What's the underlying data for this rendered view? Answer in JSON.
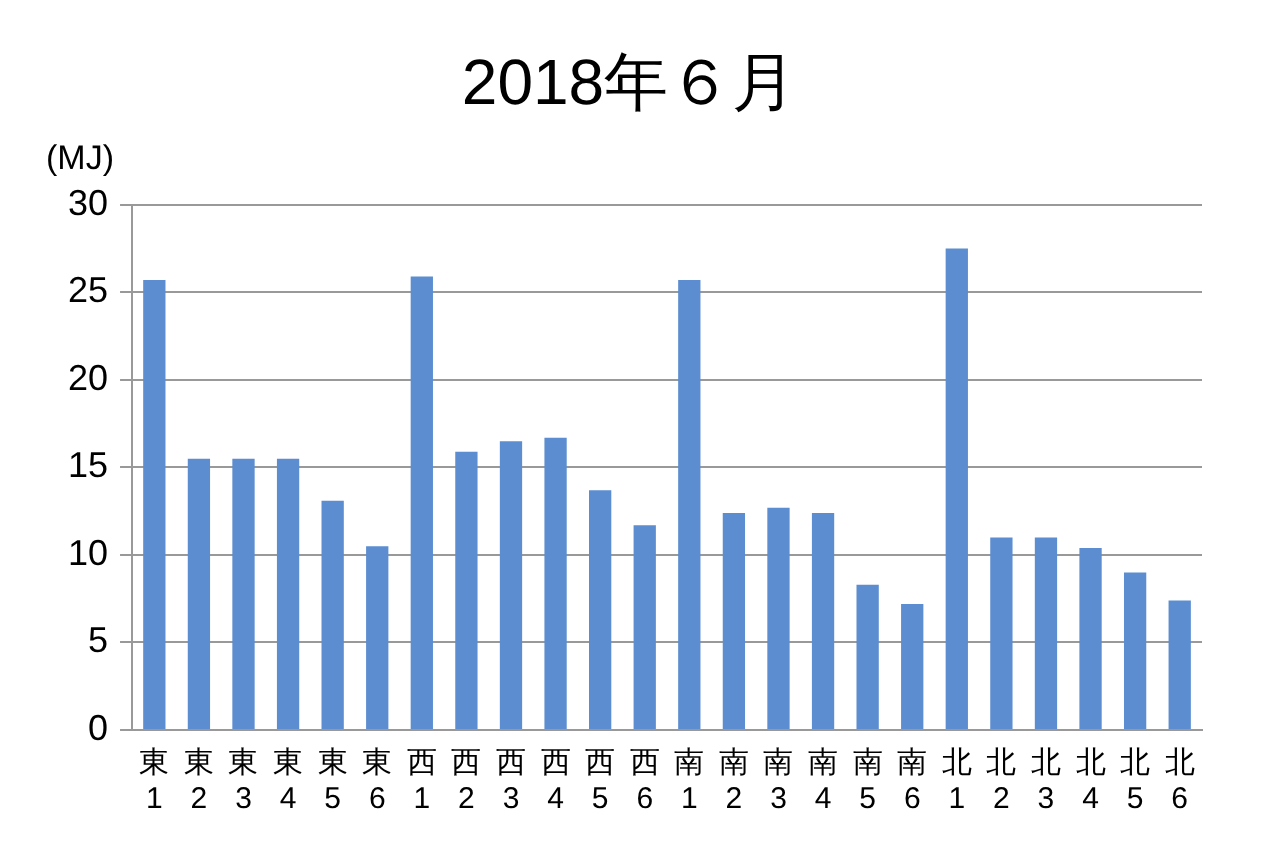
{
  "chart_data": {
    "type": "bar",
    "title": "2018年６月",
    "ylabel": "(MJ)",
    "categories": [
      "東1",
      "東2",
      "東3",
      "東4",
      "東5",
      "東6",
      "西1",
      "西2",
      "西3",
      "西4",
      "西5",
      "西6",
      "南1",
      "南2",
      "南3",
      "南4",
      "南5",
      "南6",
      "北1",
      "北2",
      "北3",
      "北4",
      "北5",
      "北6"
    ],
    "values": [
      25.7,
      15.5,
      15.5,
      15.5,
      13.1,
      10.5,
      25.9,
      15.9,
      16.5,
      16.7,
      13.7,
      11.7,
      25.7,
      12.4,
      12.7,
      12.4,
      8.3,
      7.2,
      27.5,
      11.0,
      11.0,
      10.4,
      9.0,
      7.4
    ],
    "color": "#5b8dd0",
    "ylim": [
      0,
      30
    ],
    "yticks": [
      0,
      5,
      10,
      15,
      20,
      25,
      30
    ],
    "grid": "y",
    "legend": false
  }
}
